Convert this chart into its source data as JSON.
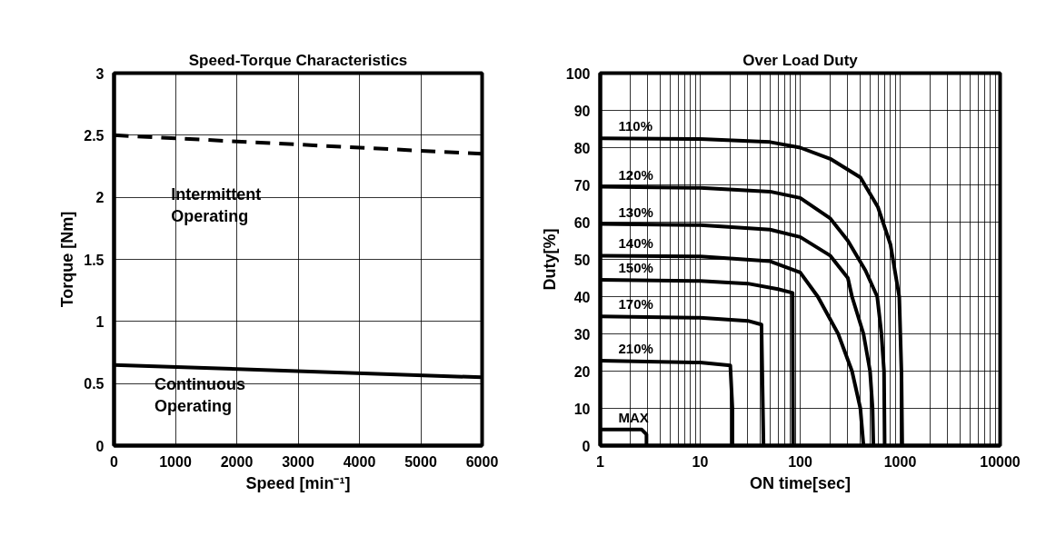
{
  "chart_data": [
    {
      "type": "line",
      "title": "Speed-Torque Characteristics",
      "xlabel": "Speed [min⁻¹]",
      "ylabel": "Torque [Nm]",
      "xlim": [
        0,
        6000
      ],
      "ylim": [
        0,
        3
      ],
      "xticks": [
        0,
        1000,
        2000,
        3000,
        4000,
        5000,
        6000
      ],
      "yticks": [
        0,
        0.5,
        1,
        1.5,
        2,
        2.5,
        3
      ],
      "grid": true,
      "series": [
        {
          "color": "#000000",
          "line_style": "dashed",
          "x": [
            0,
            6000
          ],
          "values": [
            2.5,
            2.35
          ]
        },
        {
          "color": "#000000",
          "line_style": "solid",
          "x": [
            0,
            6000
          ],
          "values": [
            0.65,
            0.55
          ]
        }
      ],
      "annotations": [
        "Intermittent\nOperating",
        "Continuous\nOperating"
      ]
    },
    {
      "type": "line",
      "title": "Over Load Duty",
      "xlabel": "ON time[sec]",
      "ylabel": "Duty[%]",
      "log": "x",
      "xlim": [
        1,
        10000
      ],
      "ylim": [
        0,
        100
      ],
      "xticks": [
        {
          "value": 1,
          "label": "1"
        },
        {
          "value": 10,
          "label": "10"
        },
        {
          "value": 100,
          "label": "100"
        },
        {
          "value": 1000,
          "label": "1000"
        },
        {
          "value": 10000,
          "label": "10000"
        }
      ],
      "yticks": [
        0,
        10,
        20,
        30,
        40,
        50,
        60,
        70,
        80,
        90,
        100
      ],
      "grid": true,
      "series": [
        {
          "name": "110%",
          "color": "#000000",
          "x": [
            1,
            10,
            50,
            100,
            200,
            400,
            600,
            800,
            980,
            1030,
            1050
          ],
          "values": [
            82.5,
            82.3,
            81.5,
            80,
            77,
            72,
            64,
            54,
            40,
            20,
            0
          ]
        },
        {
          "name": "120%",
          "color": "#000000",
          "x": [
            1,
            10,
            50,
            100,
            200,
            300,
            450,
            590,
            650,
            690,
            700
          ],
          "values": [
            69.5,
            69.2,
            68.2,
            66.5,
            61,
            55,
            47,
            40,
            30,
            20,
            0
          ]
        },
        {
          "name": "130%",
          "color": "#000000",
          "x": [
            1,
            10,
            50,
            100,
            200,
            300,
            330,
            430,
            500,
            530,
            540
          ],
          "values": [
            59.5,
            59.2,
            58,
            56,
            51,
            45,
            40,
            30,
            20,
            10,
            0
          ]
        },
        {
          "name": "140%",
          "color": "#000000",
          "x": [
            1,
            10,
            50,
            100,
            150,
            240,
            330,
            400,
            430
          ],
          "values": [
            51,
            50.8,
            49.5,
            46.5,
            40,
            30,
            20,
            10,
            0
          ]
        },
        {
          "name": "150%",
          "color": "#000000",
          "x": [
            1,
            10,
            30,
            60,
            84,
            85
          ],
          "values": [
            44.5,
            44.2,
            43.5,
            42,
            41,
            0
          ]
        },
        {
          "name": "170%",
          "color": "#000000",
          "x": [
            1,
            10,
            30,
            41,
            43
          ],
          "values": [
            34.7,
            34.3,
            33.5,
            32.5,
            0
          ]
        },
        {
          "name": "210%",
          "color": "#000000",
          "x": [
            1,
            10,
            20,
            21,
            21
          ],
          "values": [
            22.8,
            22.3,
            21.5,
            10,
            0
          ]
        },
        {
          "name": "MAX",
          "color": "#000000",
          "x": [
            1,
            2.6,
            2.9,
            2.9
          ],
          "values": [
            4.3,
            4.3,
            3,
            0
          ]
        }
      ]
    }
  ]
}
